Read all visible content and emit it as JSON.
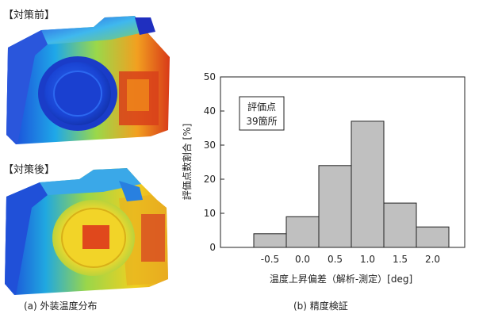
{
  "left": {
    "before_label": "【対策前】",
    "after_label": "【対策後】",
    "caption": "(a) 外装温度分布"
  },
  "right": {
    "caption": "(b) 精度検証"
  },
  "chart_data": {
    "type": "bar",
    "categories": [
      "-0.5",
      "0.0",
      "0.5",
      "1.0",
      "1.5",
      "2.0"
    ],
    "values": [
      4,
      9,
      24,
      37,
      13,
      6
    ],
    "ylim": [
      0,
      50
    ],
    "yticks": [
      "0",
      "10",
      "20",
      "30",
      "40",
      "50"
    ],
    "ylabel": "評価点数割合 [%]",
    "xlabel": "温度上昇偏差（解析-測定）[deg]",
    "annotation": [
      "評価点",
      "39箇所"
    ],
    "grid": false,
    "bar_color": "#c0c0c0"
  }
}
